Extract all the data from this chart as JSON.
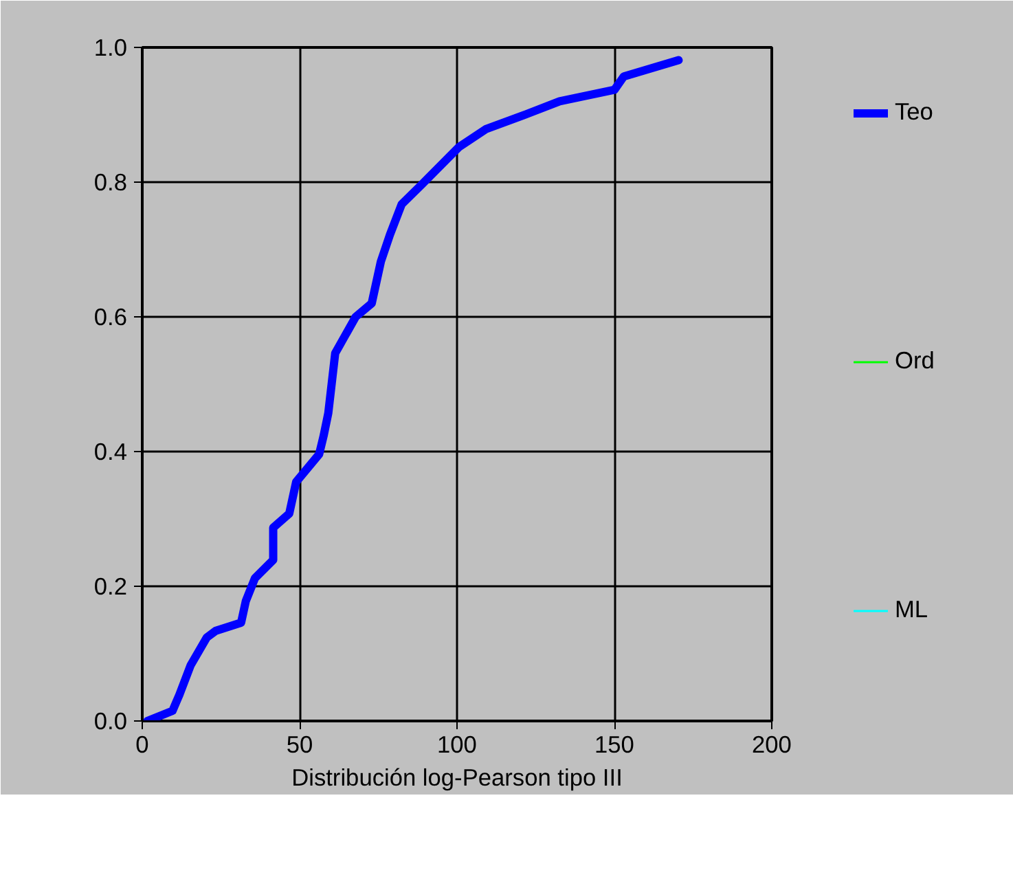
{
  "chart_data": {
    "type": "line",
    "xlabel": "Distribución log-Pearson tipo III",
    "x": [
      1.6,
      9.6,
      11.8,
      15.4,
      20.5,
      23.4,
      31.4,
      32.9,
      35.8,
      41.6,
      41.6,
      46.7,
      48.9,
      56.2,
      57.6,
      59.1,
      61.3,
      67.8,
      72.9,
      75.8,
      78.7,
      82.4,
      88.9,
      100.6,
      109.3,
      121,
      132.6,
      150,
      153,
      170.4
    ],
    "series": [
      {
        "name": "Teo",
        "color": "#0000ff",
        "values": [
          0.0,
          0.015,
          0.039,
          0.083,
          0.124,
          0.134,
          0.146,
          0.178,
          0.212,
          0.239,
          0.287,
          0.308,
          0.355,
          0.396,
          0.423,
          0.457,
          0.546,
          0.6,
          0.62,
          0.682,
          0.722,
          0.767,
          0.797,
          0.852,
          0.879,
          0.899,
          0.92,
          0.937,
          0.957,
          0.981
        ]
      },
      {
        "name": "Ord",
        "color": "#00ff00",
        "values": [
          null,
          null,
          null,
          null,
          null,
          null,
          null,
          null,
          null,
          null,
          null,
          null,
          null,
          null,
          null,
          null,
          null,
          null,
          null,
          null,
          null,
          null,
          null,
          null,
          null,
          null,
          null,
          null,
          null,
          null
        ]
      },
      {
        "name": "ML",
        "color": "#00ffff",
        "values": [
          null,
          null,
          null,
          null,
          null,
          null,
          null,
          null,
          null,
          null,
          null,
          null,
          null,
          null,
          null,
          null,
          null,
          null,
          null,
          null,
          null,
          null,
          null,
          null,
          null,
          null,
          null,
          null,
          null,
          null
        ]
      }
    ],
    "xlim": [
      0,
      200
    ],
    "xticks": [
      0,
      50,
      100,
      150,
      200
    ],
    "ylim": [
      0,
      1
    ],
    "yticks": [
      {
        "value": 0,
        "label": "0.0"
      },
      {
        "value": 0.2,
        "label": "0.2"
      },
      {
        "value": 0.4,
        "label": "0.4"
      },
      {
        "value": 0.6,
        "label": "0.6"
      },
      {
        "value": 0.8,
        "label": "0.8"
      },
      {
        "value": 1,
        "label": "1.0"
      }
    ],
    "grid": true,
    "legend": "right",
    "marker": "none",
    "line_style": "solid"
  }
}
